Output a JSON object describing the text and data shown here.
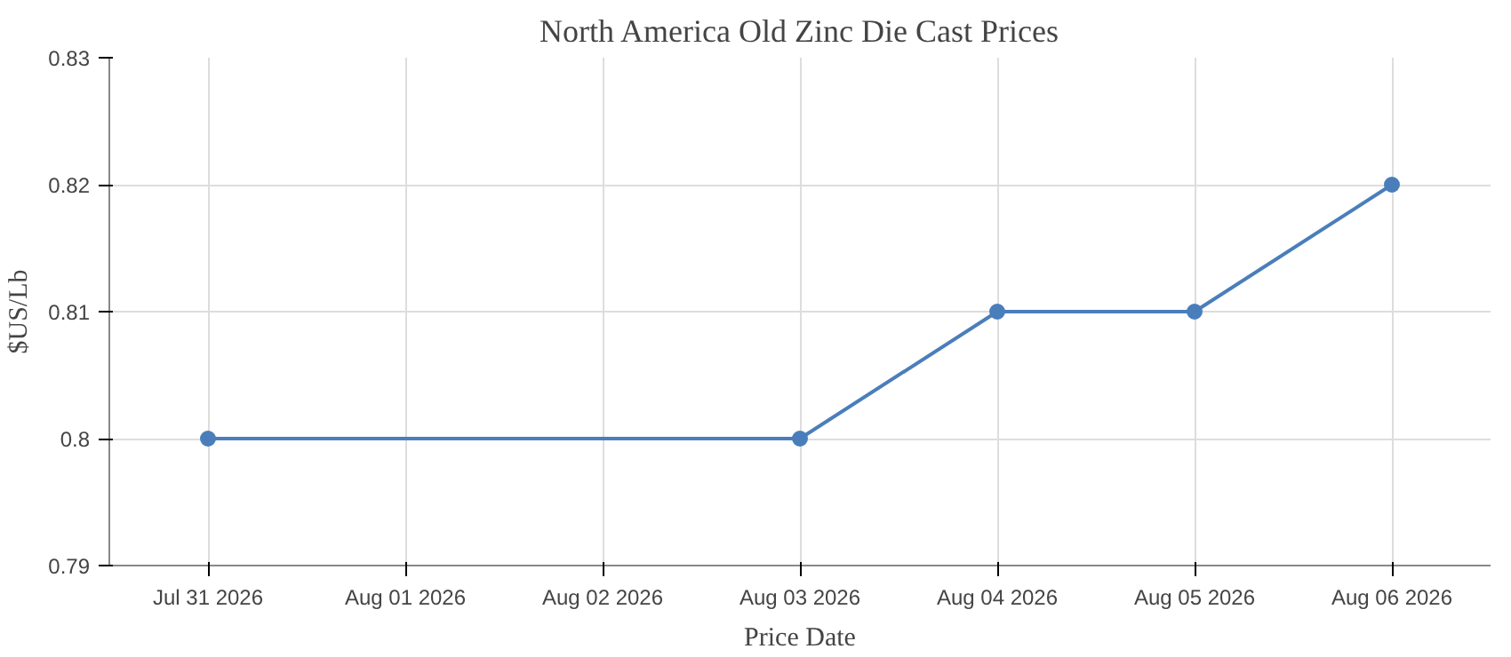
{
  "chart_data": {
    "type": "line",
    "title": "North America Old Zinc Die Cast Prices",
    "xlabel": "Price Date",
    "ylabel": "$US/Lb",
    "x": [
      "2026-07-31",
      "2026-08-03",
      "2026-08-04",
      "2026-08-05",
      "2026-08-06"
    ],
    "series": [
      {
        "color": "#4a7ebb",
        "values": [
          0.8,
          0.8,
          0.81,
          0.81,
          0.82
        ]
      }
    ],
    "xlim": [
      "2026-07-30T12:00",
      "2026-08-06T12:00"
    ],
    "xticks": [
      {
        "value": "2026-07-31",
        "label": "Jul 31 2026"
      },
      {
        "value": "2026-08-01",
        "label": "Aug 01 2026"
      },
      {
        "value": "2026-08-02",
        "label": "Aug 02 2026"
      },
      {
        "value": "2026-08-03",
        "label": "Aug 03 2026"
      },
      {
        "value": "2026-08-04",
        "label": "Aug 04 2026"
      },
      {
        "value": "2026-08-05",
        "label": "Aug 05 2026"
      },
      {
        "value": "2026-08-06",
        "label": "Aug 06 2026"
      }
    ],
    "ylim": [
      0.79,
      0.83
    ],
    "yticks": [
      0.79,
      0.8,
      0.81,
      0.82,
      0.83
    ],
    "grid": true,
    "marker": "circle",
    "line_style": "solid"
  }
}
